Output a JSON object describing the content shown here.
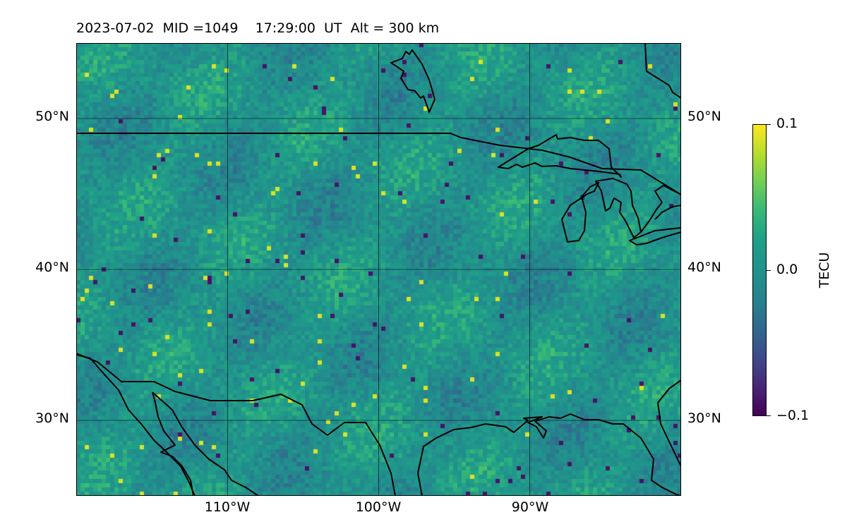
{
  "title": "2023-07-02  MID =1049    17:29:00  UT  Alt = 300 km",
  "map": {
    "projection": "plate-carree",
    "extent": {
      "lon_min": -120,
      "lon_max": -80,
      "lat_min": 25,
      "lat_max": 55
    },
    "lat_ticks": [
      {
        "value": 50,
        "label": "50°N"
      },
      {
        "value": 40,
        "label": "40°N"
      },
      {
        "value": 30,
        "label": "30°N"
      }
    ],
    "lon_ticks": [
      {
        "value": -110,
        "label": "110°W"
      },
      {
        "value": -100,
        "label": "100°W"
      },
      {
        "value": -90,
        "label": "90°W"
      }
    ],
    "grid": true,
    "coastlines": true,
    "borders": true,
    "colormap": "viridis"
  },
  "colorbar": {
    "label": "TECU",
    "vmin": -0.1,
    "vmax": 0.1,
    "ticks": [
      {
        "value": 0.1,
        "label": "0.1"
      },
      {
        "value": 0.0,
        "label": "0.0"
      },
      {
        "value": -0.1,
        "label": "−0.1"
      }
    ]
  }
}
